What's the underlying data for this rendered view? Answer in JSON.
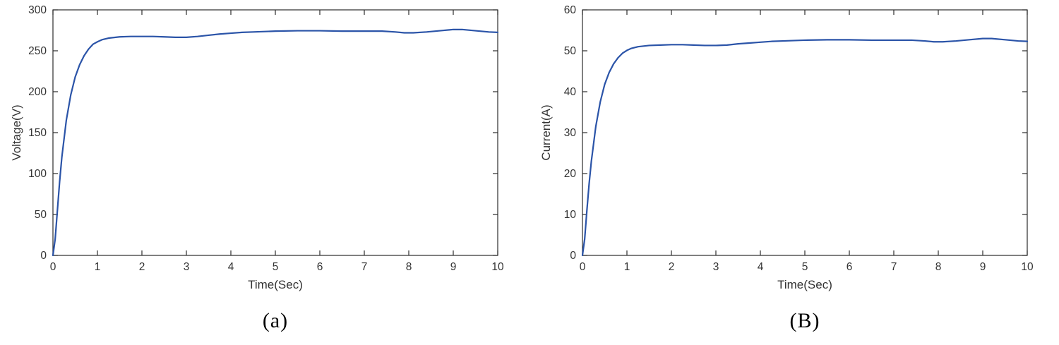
{
  "style": {
    "background": "#ffffff",
    "axis_color": "#2b2b2b",
    "tick_text_color": "#333333",
    "label_text_color": "#333333",
    "line_width": 2.2
  },
  "chart_data": [
    {
      "type": "line",
      "title": "",
      "caption": "(a)",
      "xlabel": "Time(Sec)",
      "ylabel": "Voltage(V)",
      "xlim": [
        0,
        10
      ],
      "ylim": [
        0,
        300
      ],
      "xticks": [
        0,
        1,
        2,
        3,
        4,
        5,
        6,
        7,
        8,
        9,
        10
      ],
      "yticks": [
        0,
        50,
        100,
        150,
        200,
        250,
        300
      ],
      "grid": false,
      "legend": null,
      "line_color": "#2b54a8",
      "series": [
        {
          "name": "Voltage",
          "x": [
            0,
            0.05,
            0.1,
            0.15,
            0.2,
            0.3,
            0.4,
            0.5,
            0.6,
            0.7,
            0.8,
            0.9,
            1.0,
            1.1,
            1.25,
            1.5,
            1.75,
            2.0,
            2.25,
            2.5,
            2.75,
            3.0,
            3.25,
            3.5,
            3.75,
            4.0,
            4.25,
            4.5,
            5.0,
            5.5,
            6.0,
            6.5,
            7.0,
            7.4,
            7.7,
            7.9,
            8.1,
            8.4,
            8.7,
            9.0,
            9.2,
            9.5,
            9.8,
            10.0
          ],
          "y": [
            0,
            20,
            55,
            90,
            120,
            165,
            196,
            218,
            233,
            244,
            252,
            258,
            261,
            263.5,
            265.5,
            267,
            267.5,
            267.5,
            267.5,
            267,
            266.5,
            266.5,
            267.5,
            269,
            270.5,
            271.5,
            272.5,
            273,
            274,
            274.5,
            274.5,
            274,
            274,
            274,
            273,
            272,
            272,
            273,
            274.5,
            276,
            276,
            274.5,
            273,
            272.5
          ]
        }
      ]
    },
    {
      "type": "line",
      "title": "",
      "caption": "(B)",
      "xlabel": "Time(Sec)",
      "ylabel": "Current(A)",
      "xlim": [
        0,
        10
      ],
      "ylim": [
        0,
        60
      ],
      "xticks": [
        0,
        1,
        2,
        3,
        4,
        5,
        6,
        7,
        8,
        9,
        10
      ],
      "yticks": [
        0,
        10,
        20,
        30,
        40,
        50,
        60
      ],
      "grid": false,
      "legend": null,
      "line_color": "#2b54a8",
      "series": [
        {
          "name": "Current",
          "x": [
            0,
            0.05,
            0.1,
            0.15,
            0.2,
            0.3,
            0.4,
            0.5,
            0.6,
            0.7,
            0.8,
            0.9,
            1.0,
            1.1,
            1.25,
            1.5,
            1.75,
            2.0,
            2.25,
            2.5,
            2.75,
            3.0,
            3.25,
            3.5,
            3.75,
            4.0,
            4.25,
            4.5,
            5.0,
            5.5,
            6.0,
            6.5,
            7.0,
            7.4,
            7.7,
            7.9,
            8.1,
            8.4,
            8.7,
            9.0,
            9.2,
            9.5,
            9.8,
            10.0
          ],
          "y": [
            0,
            4,
            11,
            17.5,
            23,
            31.5,
            37.5,
            41.8,
            44.7,
            46.8,
            48.3,
            49.4,
            50.1,
            50.6,
            51.0,
            51.3,
            51.4,
            51.5,
            51.5,
            51.4,
            51.3,
            51.3,
            51.4,
            51.7,
            51.9,
            52.1,
            52.3,
            52.4,
            52.6,
            52.7,
            52.7,
            52.6,
            52.6,
            52.6,
            52.4,
            52.2,
            52.2,
            52.4,
            52.7,
            53.0,
            53.0,
            52.7,
            52.4,
            52.3
          ]
        }
      ]
    }
  ]
}
